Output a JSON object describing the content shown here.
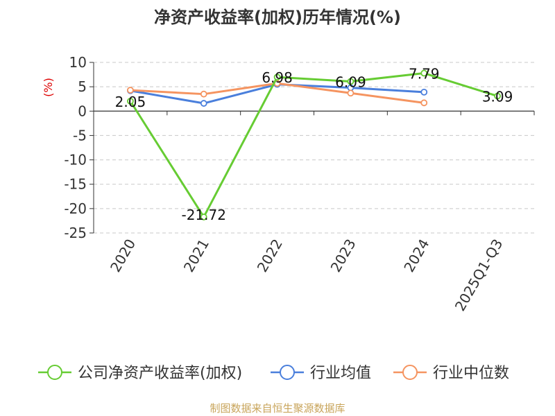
{
  "chart_data": {
    "type": "line",
    "title": "净资产收益率(加权)历年情况(%)",
    "ylabel": "(%)",
    "ylim": [
      -25,
      10
    ],
    "yticks": [
      10,
      5,
      0,
      -5,
      -10,
      -15,
      -20,
      -25
    ],
    "categories": [
      "2020",
      "2021",
      "2022",
      "2023",
      "2024",
      "2025Q1-Q3"
    ],
    "grid": true,
    "legend_position": "bottom",
    "series": [
      {
        "name": "公司净资产收益率(加权)",
        "color": "#66cc33",
        "values": [
          2.05,
          -21.72,
          6.98,
          6.09,
          7.79,
          3.09
        ],
        "labels": [
          "2.05",
          "-21.72",
          "6.98",
          "6.09",
          "7.79",
          "3.09"
        ]
      },
      {
        "name": "行业均值",
        "color": "#4a7fdc",
        "values": [
          4.2,
          1.6,
          5.5,
          4.8,
          3.9,
          null
        ]
      },
      {
        "name": "行业中位数",
        "color": "#f59460",
        "values": [
          4.3,
          3.5,
          5.7,
          3.7,
          1.7,
          null
        ]
      }
    ]
  },
  "footer": {
    "source": "制图数据来自恒生聚源数据库"
  }
}
